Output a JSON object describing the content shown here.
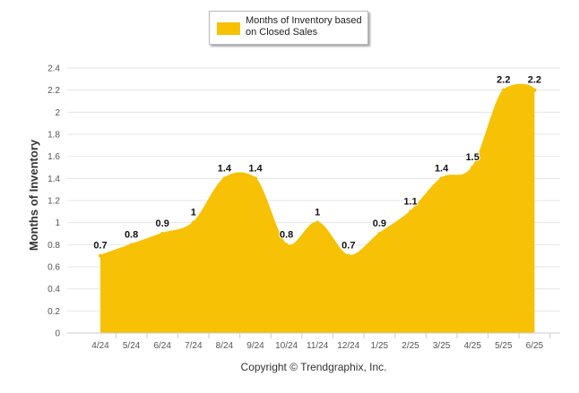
{
  "legend": {
    "label": "Months of Inventory based\non Closed Sales"
  },
  "footer": {
    "copyright": "Copyright © Trendgraphix, Inc."
  },
  "colors": {
    "area_fill": "#f7c105",
    "grid": "#e6e6e6",
    "axis_text": "#555555",
    "label_text": "#111111"
  },
  "chart_data": {
    "type": "area",
    "title": "",
    "xlabel": "",
    "ylabel": "Months of Inventory",
    "categories": [
      "4/24",
      "5/24",
      "6/24",
      "7/24",
      "8/24",
      "9/24",
      "10/24",
      "11/24",
      "12/24",
      "1/25",
      "2/25",
      "3/25",
      "4/25",
      "5/25",
      "6/25"
    ],
    "series": [
      {
        "name": "Months of Inventory based on Closed Sales",
        "values": [
          0.7,
          0.8,
          0.9,
          1,
          1.4,
          1.4,
          0.8,
          1,
          0.7,
          0.9,
          1.1,
          1.4,
          1.5,
          2.2,
          2.2
        ]
      }
    ],
    "ylim": [
      0,
      2.4
    ],
    "yticks": [
      "0",
      "0.2",
      "0.4",
      "0.6",
      "0.8",
      "1",
      "1.2",
      "1.4",
      "1.6",
      "1.8",
      "2",
      "2.2",
      "2.4"
    ],
    "grid": true,
    "legend_position": "top-center"
  }
}
